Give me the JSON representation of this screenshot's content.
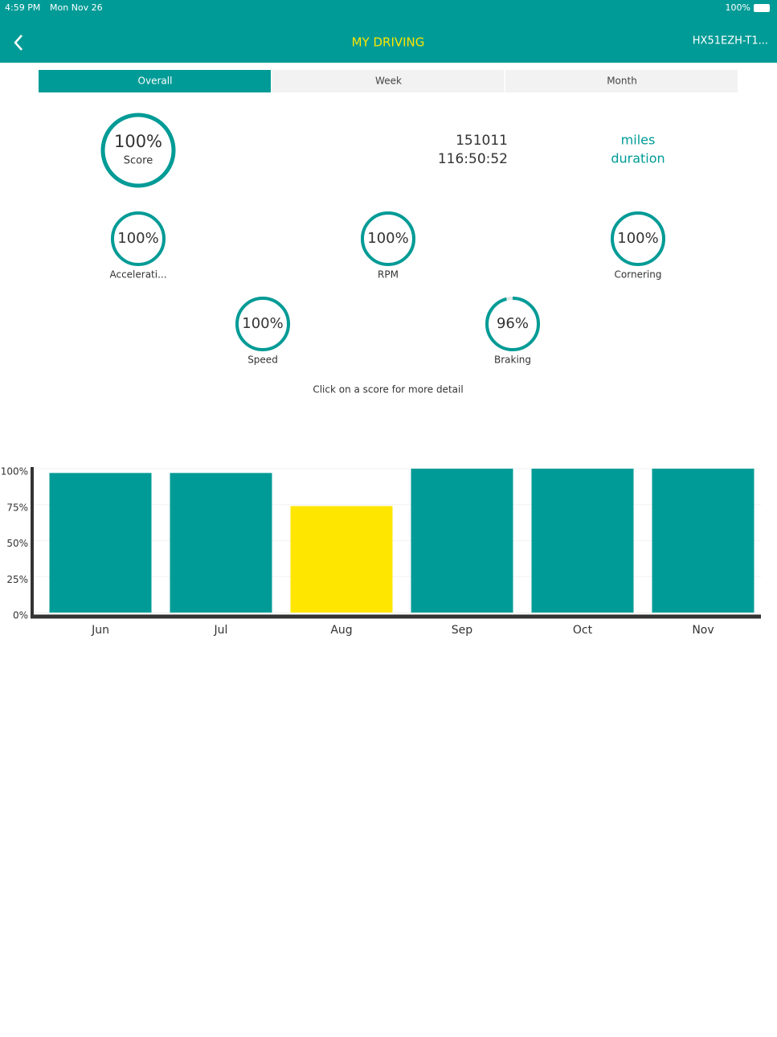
{
  "status_bar": {
    "time": "4:59 PM",
    "date": "Mon Nov 26",
    "battery": "100%"
  },
  "header": {
    "title": "MY DRIVING",
    "vehicle": "HX51EZH-T1..."
  },
  "tabs": [
    "Overall",
    "Week",
    "Month"
  ],
  "score": {
    "name": "Score",
    "value": 100,
    "value_label": "100%"
  },
  "stats": {
    "distance": "151011",
    "distance_unit": "miles",
    "duration": "116:50:52",
    "duration_unit": "duration"
  },
  "sub_scores": [
    {
      "name": "Accelerati...",
      "value": 100,
      "value_label": "100%"
    },
    {
      "name": "RPM",
      "value": 100,
      "value_label": "100%"
    },
    {
      "name": "Cornering",
      "value": 100,
      "value_label": "100%"
    },
    {
      "name": "Speed",
      "value": 100,
      "value_label": "100%"
    },
    {
      "name": "Braking",
      "value": 96,
      "value_label": "96%"
    }
  ],
  "hint": "Click on a score for more detail",
  "chart_data": {
    "type": "bar",
    "categories": [
      "Jun",
      "Jul",
      "Aug",
      "Sep",
      "Oct",
      "Nov"
    ],
    "values": [
      97,
      97,
      74,
      100,
      100,
      100
    ],
    "colors": [
      "#009b96",
      "#009b96",
      "#ffe600",
      "#009b96",
      "#009b96",
      "#009b96"
    ],
    "ylim": [
      0,
      100
    ],
    "yticks": [
      {
        "value": 0,
        "label": "0%"
      },
      {
        "value": 25,
        "label": "25%"
      },
      {
        "value": 50,
        "label": "50%"
      },
      {
        "value": 75,
        "label": "75%"
      },
      {
        "value": 100,
        "label": "100%"
      }
    ],
    "grid": true
  }
}
